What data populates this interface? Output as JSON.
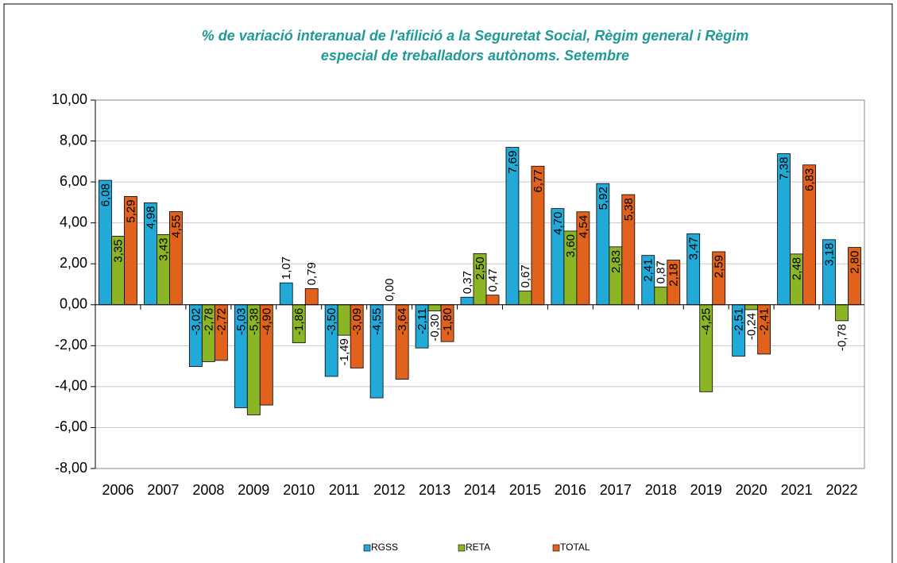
{
  "chart_data": {
    "type": "bar",
    "title": [
      "% de variació interanual de l'afilició a la Seguretat Social, Règim general i Règim",
      "especial de treballadors autònoms. Setembre"
    ],
    "categories": [
      "2006",
      "2007",
      "2008",
      "2009",
      "2010",
      "2011",
      "2012",
      "2013",
      "2014",
      "2015",
      "2016",
      "2017",
      "2018",
      "2019",
      "2020",
      "2021",
      "2022"
    ],
    "series": [
      {
        "name": "RGSS",
        "color": "#21a9d8",
        "values": [
          6.08,
          4.98,
          -3.02,
          -5.03,
          1.07,
          -3.5,
          -4.55,
          -2.11,
          0.37,
          7.69,
          4.7,
          5.92,
          2.41,
          3.47,
          -2.51,
          7.38,
          3.18
        ],
        "value_labels": [
          "6,08",
          "4,98",
          "-3,02",
          "-5,03",
          "1,07",
          "-3,50",
          "-4,55",
          "-2,11",
          "0,37",
          "7,69",
          "4,70",
          "5,92",
          "2,41",
          "3,47",
          "-2,51",
          "7,38",
          "3,18"
        ]
      },
      {
        "name": "RETA",
        "color": "#8cb525",
        "values": [
          3.35,
          3.43,
          -2.78,
          -5.38,
          -1.86,
          -1.49,
          0.0,
          -0.3,
          2.5,
          0.67,
          3.6,
          2.83,
          0.87,
          -4.25,
          -0.24,
          2.48,
          -0.78
        ],
        "value_labels": [
          "3,35",
          "3,43",
          "-2,78",
          "-5,38",
          "-1,86",
          "-1,49",
          "0,00",
          "-0,30",
          "2,50",
          "0,67",
          "3,60",
          "2,83",
          "0,87",
          "-4,25",
          "-0,24",
          "2,48",
          "-0,78"
        ]
      },
      {
        "name": "TOTAL",
        "color": "#e0621c",
        "values": [
          5.29,
          4.55,
          -2.72,
          -4.9,
          0.79,
          -3.09,
          -3.64,
          -1.8,
          0.47,
          6.77,
          4.54,
          5.38,
          2.18,
          2.59,
          -2.41,
          6.83,
          2.8
        ],
        "value_labels": [
          "5,29",
          "4,55",
          "-2,72",
          "-4,90",
          "0,79",
          "-3,09",
          "-3,64",
          "-1,80",
          "0,47",
          "6,77",
          "4,54",
          "5,38",
          "2,18",
          "2,59",
          "-2,41",
          "6,83",
          "2,80"
        ]
      }
    ],
    "ylim": [
      -8,
      10
    ],
    "yticks": [
      {
        "value": -8,
        "label": "-8,00"
      },
      {
        "value": -6,
        "label": "-6,00"
      },
      {
        "value": -4,
        "label": "-4,00"
      },
      {
        "value": -2,
        "label": "-2,00"
      },
      {
        "value": 0,
        "label": "0,00"
      },
      {
        "value": 2,
        "label": "2,00"
      },
      {
        "value": 4,
        "label": "4,00"
      },
      {
        "value": 6,
        "label": "6,00"
      },
      {
        "value": 8,
        "label": "8,00"
      },
      {
        "value": 10,
        "label": "10,00"
      }
    ],
    "grid": true,
    "legend": "bottom"
  }
}
